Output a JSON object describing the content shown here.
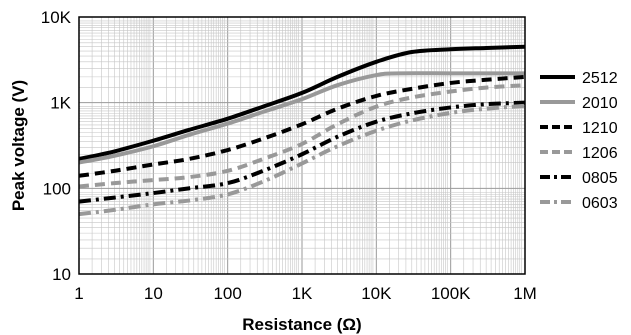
{
  "chart_data": {
    "type": "line",
    "title": "",
    "xlabel": "Resistance (Ω)",
    "ylabel": "Peak voltage (V)",
    "xscale": "log",
    "yscale": "log",
    "xlim": [
      1,
      1000000
    ],
    "ylim": [
      10,
      10000
    ],
    "grid": true,
    "legend_position": "right",
    "x_ticks": [
      {
        "value": 1,
        "label": "1"
      },
      {
        "value": 10,
        "label": "10"
      },
      {
        "value": 100,
        "label": "100"
      },
      {
        "value": 1000,
        "label": "1K"
      },
      {
        "value": 10000,
        "label": "10K"
      },
      {
        "value": 100000,
        "label": "100K"
      },
      {
        "value": 1000000,
        "label": "1M"
      }
    ],
    "y_ticks": [
      {
        "value": 10,
        "label": "10"
      },
      {
        "value": 100,
        "label": "100"
      },
      {
        "value": 1000,
        "label": "1K"
      },
      {
        "value": 10000,
        "label": "10K"
      }
    ],
    "series": [
      {
        "name": "2512",
        "color": "#000000",
        "style": "solid",
        "x": [
          1,
          3,
          10,
          30,
          100,
          300,
          1000,
          3000,
          10000,
          30000,
          100000,
          300000,
          1000000
        ],
        "y": [
          220,
          270,
          360,
          480,
          650,
          900,
          1300,
          2000,
          3000,
          3900,
          4200,
          4350,
          4500
        ]
      },
      {
        "name": "2010",
        "color": "#999999",
        "style": "solid",
        "x": [
          1,
          3,
          10,
          30,
          100,
          300,
          1000,
          3000,
          10000,
          20000,
          100000,
          300000,
          1000000
        ],
        "y": [
          200,
          240,
          310,
          420,
          570,
          780,
          1100,
          1600,
          2100,
          2200,
          2200,
          2200,
          2200
        ]
      },
      {
        "name": "1210",
        "color": "#000000",
        "style": "dash",
        "x": [
          1,
          3,
          10,
          30,
          100,
          300,
          1000,
          3000,
          10000,
          30000,
          100000,
          300000,
          1000000
        ],
        "y": [
          140,
          160,
          190,
          220,
          280,
          380,
          560,
          850,
          1200,
          1450,
          1700,
          1850,
          2000
        ]
      },
      {
        "name": "1206",
        "color": "#999999",
        "style": "dash",
        "x": [
          1,
          3,
          10,
          30,
          100,
          300,
          1000,
          3000,
          10000,
          30000,
          100000,
          300000,
          1000000
        ],
        "y": [
          105,
          115,
          125,
          135,
          160,
          220,
          330,
          560,
          900,
          1150,
          1350,
          1500,
          1600
        ]
      },
      {
        "name": "0805",
        "color": "#000000",
        "style": "dashdot",
        "x": [
          1,
          3,
          10,
          30,
          100,
          300,
          1000,
          3000,
          10000,
          30000,
          100000,
          300000,
          1000000
        ],
        "y": [
          70,
          78,
          88,
          100,
          115,
          160,
          250,
          400,
          600,
          750,
          880,
          960,
          1000
        ]
      },
      {
        "name": "0603",
        "color": "#999999",
        "style": "dashdot",
        "x": [
          1,
          3,
          10,
          30,
          100,
          300,
          1000,
          3000,
          10000,
          30000,
          100000,
          300000,
          1000000
        ],
        "y": [
          50,
          56,
          65,
          72,
          85,
          120,
          195,
          310,
          470,
          620,
          760,
          850,
          920
        ]
      }
    ]
  }
}
